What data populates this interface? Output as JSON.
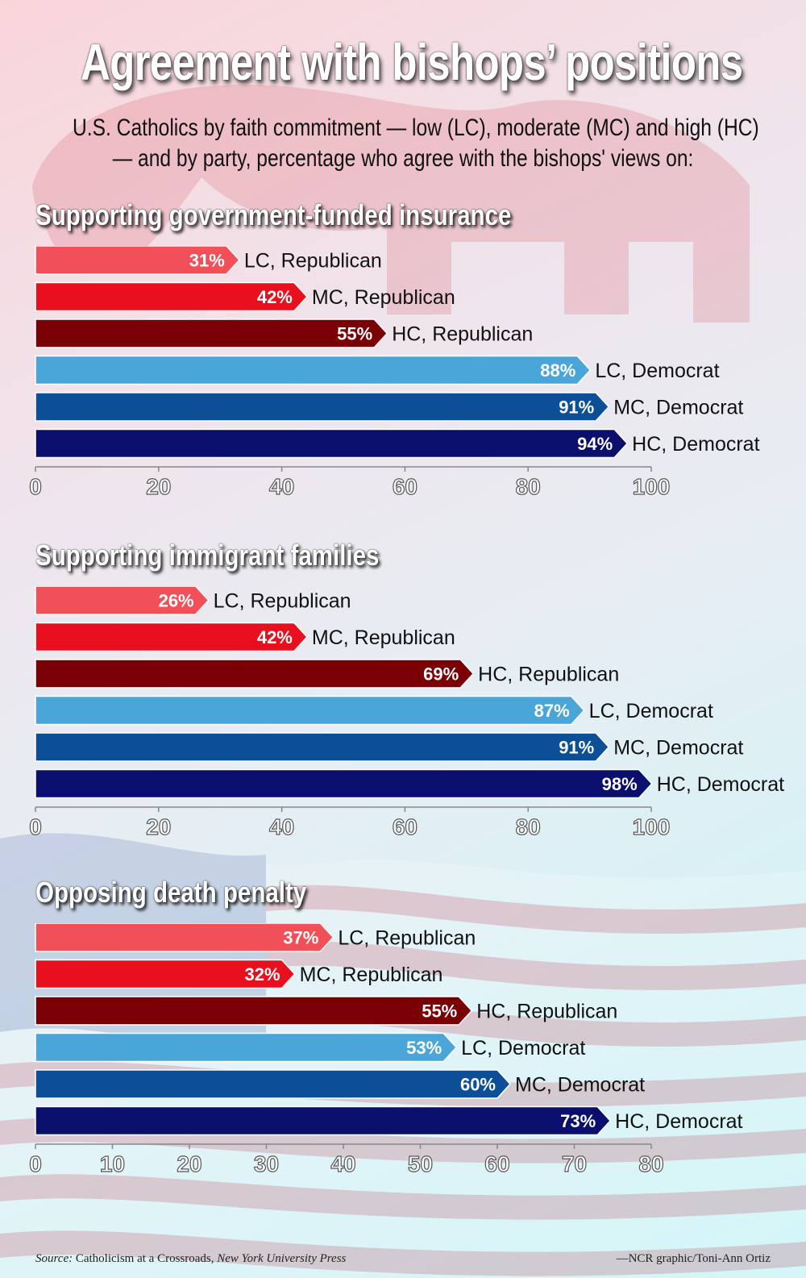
{
  "title": "Agreement with bishops’ positions",
  "subtitle": {
    "line1": "U.S. Catholics by faith commitment — low (LC), moderate (MC) and high (HC)",
    "line2": "— and by party, percentage who agree with the bishops' views on:"
  },
  "colors": {
    "lc_republican": "#f25058",
    "mc_republican": "#e8101e",
    "hc_republican": "#7a0006",
    "lc_democrat": "#4aa6d8",
    "mc_democrat": "#0d4f97",
    "hc_democrat": "#0a0f6e"
  },
  "chart_data": [
    {
      "type": "bar",
      "orientation": "horizontal",
      "title": "Supporting government-funded insurance",
      "categories": [
        "LC, Republican",
        "MC, Republican",
        "HC, Republican",
        "LC, Democrat",
        "MC, Democrat",
        "HC, Democrat"
      ],
      "values": [
        31,
        42,
        55,
        88,
        91,
        94
      ],
      "value_labels": [
        "31%",
        "42%",
        "55%",
        "88%",
        "91%",
        "94%"
      ],
      "xlim": [
        0,
        100
      ],
      "ticks": [
        0,
        20,
        40,
        60,
        80,
        100
      ]
    },
    {
      "type": "bar",
      "orientation": "horizontal",
      "title": "Supporting immigrant families",
      "categories": [
        "LC, Republican",
        "MC, Republican",
        "HC, Republican",
        "LC, Democrat",
        "MC, Democrat",
        "HC, Democrat"
      ],
      "values": [
        26,
        42,
        69,
        87,
        91,
        98
      ],
      "value_labels": [
        "26%",
        "42%",
        "69%",
        "87%",
        "91%",
        "98%"
      ],
      "xlim": [
        0,
        100
      ],
      "ticks": [
        0,
        20,
        40,
        60,
        80,
        100
      ]
    },
    {
      "type": "bar",
      "orientation": "horizontal",
      "title": "Opposing death penalty",
      "categories": [
        "LC, Republican",
        "MC, Republican",
        "HC, Republican",
        "LC, Democrat",
        "MC, Democrat",
        "HC, Democrat"
      ],
      "values": [
        37,
        32,
        55,
        53,
        60,
        73
      ],
      "value_labels": [
        "37%",
        "32%",
        "55%",
        "53%",
        "60%",
        "73%"
      ],
      "xlim": [
        0,
        80
      ],
      "ticks": [
        0,
        10,
        20,
        30,
        40,
        50,
        60,
        70,
        80
      ]
    }
  ],
  "footer": {
    "source_label": "Source:",
    "source_text": "Catholicism at a Crossroads,",
    "source_publisher": "New York University Press",
    "credit": "—NCR graphic/Toni-Ann Ortiz"
  }
}
